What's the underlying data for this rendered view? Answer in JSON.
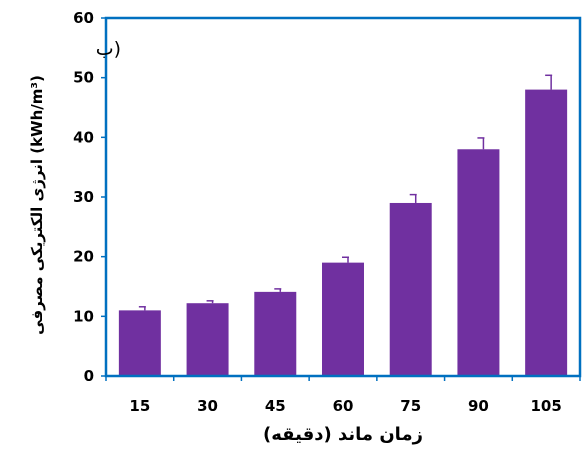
{
  "chart_data": {
    "type": "bar",
    "panel_label": "(ب",
    "categories": [
      "15",
      "30",
      "45",
      "60",
      "75",
      "90",
      "105"
    ],
    "values": [
      11,
      12.2,
      14.1,
      19,
      29,
      38,
      48
    ],
    "errors": [
      0.6,
      0.4,
      0.5,
      0.9,
      1.4,
      1.9,
      2.4
    ],
    "xlabel": "زمان ماند (دقیقه)",
    "ylabel": "انرژی الکتریکی مصرفی (kWh/m³)",
    "ylim": [
      0,
      60
    ],
    "yticks": [
      "0",
      "10",
      "20",
      "30",
      "40",
      "50",
      "60"
    ],
    "grid": false,
    "colors": {
      "bar": "#7030a0",
      "frame": "#0070c0",
      "error_bar": "#7030a0"
    }
  }
}
